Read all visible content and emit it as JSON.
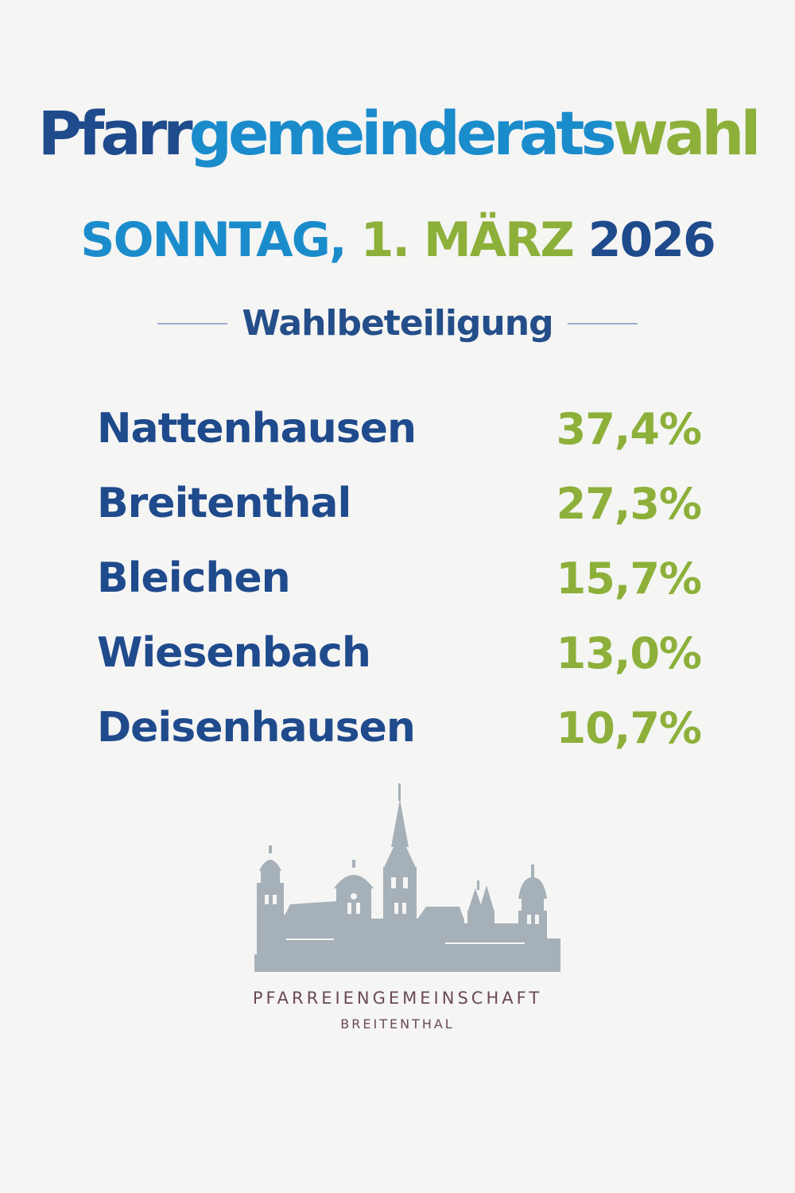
{
  "title": {
    "part1": "Pfarr",
    "part2": "gemeinderats",
    "part3": "wahl"
  },
  "date": {
    "weekday": "SONNTAG,",
    "day_month": "1. MÄRZ",
    "year": "2026"
  },
  "section_title": "Wahlbeteiligung",
  "results": [
    {
      "place": "Nattenhausen",
      "turnout": "37,4%"
    },
    {
      "place": "Breitenthal",
      "turnout": "27,3%"
    },
    {
      "place": "Bleichen",
      "turnout": "15,7%"
    },
    {
      "place": "Wiesenbach",
      "turnout": "13,0%"
    },
    {
      "place": "Deisenhausen",
      "turnout": "10,7%"
    }
  ],
  "organization": {
    "name": "PFARREIENGEMEINSCHAFT",
    "location": "BREITENTHAL"
  },
  "colors": {
    "dark_blue": "#1f4a8c",
    "light_blue": "#1b8ccb",
    "green": "#8db03a",
    "skyline_gray": "#a6b0b8",
    "org_text": "#6a4a58"
  },
  "icons": {
    "logo": "church-skyline-icon"
  }
}
